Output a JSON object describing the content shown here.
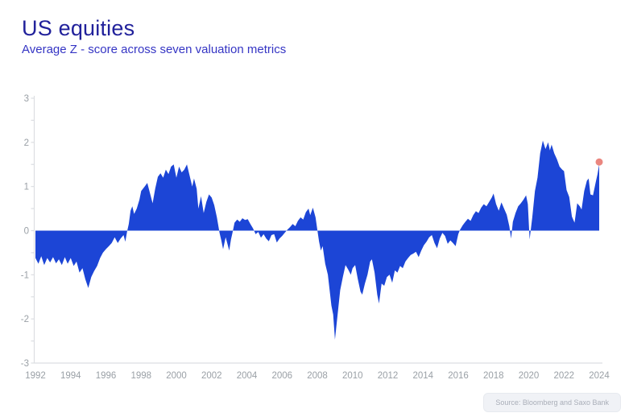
{
  "header": {
    "title": "US equities",
    "subtitle": "Average Z - score across seven valuation metrics"
  },
  "source": {
    "label": "Source: Bloomberg and Saxo Bank"
  },
  "colors": {
    "fill": "#1c45d6",
    "marker": "#ea867f",
    "axis_line": "#dcdee2",
    "tick_label": "#9aa0a6",
    "title": "#21219b",
    "subtitle": "#3535c4"
  },
  "chart_data": {
    "type": "area",
    "title": "US equities",
    "subtitle": "Average Z - score across seven valuation metrics",
    "xlabel": "",
    "ylabel": "",
    "xlim": [
      1992,
      2024
    ],
    "ylim": [
      -3,
      3
    ],
    "x_ticks": [
      1992,
      1994,
      1996,
      1998,
      2000,
      2002,
      2004,
      2006,
      2008,
      2010,
      2012,
      2014,
      2016,
      2018,
      2020,
      2022,
      2024
    ],
    "y_ticks": [
      3,
      2,
      1,
      0,
      -1,
      -2,
      -3
    ],
    "minor_y_tick_step": 0.5,
    "grid": false,
    "legend": null,
    "end_marker": {
      "x": 2024.0,
      "y": 1.5
    },
    "series_name": "Average Z-score",
    "points": [
      [
        1992.0,
        -0.62
      ],
      [
        1992.17,
        -0.75
      ],
      [
        1992.33,
        -0.58
      ],
      [
        1992.5,
        -0.78
      ],
      [
        1992.67,
        -0.62
      ],
      [
        1992.83,
        -0.72
      ],
      [
        1993.0,
        -0.6
      ],
      [
        1993.17,
        -0.74
      ],
      [
        1993.33,
        -0.65
      ],
      [
        1993.5,
        -0.78
      ],
      [
        1993.67,
        -0.6
      ],
      [
        1993.83,
        -0.75
      ],
      [
        1994.0,
        -0.62
      ],
      [
        1994.17,
        -0.8
      ],
      [
        1994.33,
        -0.7
      ],
      [
        1994.5,
        -0.95
      ],
      [
        1994.67,
        -0.85
      ],
      [
        1994.83,
        -1.1
      ],
      [
        1995.0,
        -1.3
      ],
      [
        1995.17,
        -1.05
      ],
      [
        1995.33,
        -0.92
      ],
      [
        1995.5,
        -0.8
      ],
      [
        1995.67,
        -0.62
      ],
      [
        1995.83,
        -0.5
      ],
      [
        1996.0,
        -0.42
      ],
      [
        1996.17,
        -0.35
      ],
      [
        1996.33,
        -0.28
      ],
      [
        1996.5,
        -0.15
      ],
      [
        1996.67,
        -0.28
      ],
      [
        1996.83,
        -0.18
      ],
      [
        1997.0,
        -0.1
      ],
      [
        1997.1,
        -0.25
      ],
      [
        1997.2,
        -0.02
      ],
      [
        1997.3,
        0.15
      ],
      [
        1997.4,
        0.45
      ],
      [
        1997.5,
        0.55
      ],
      [
        1997.6,
        0.38
      ],
      [
        1997.75,
        0.5
      ],
      [
        1997.9,
        0.7
      ],
      [
        1998.0,
        0.9
      ],
      [
        1998.2,
        1.0
      ],
      [
        1998.35,
        1.08
      ],
      [
        1998.5,
        0.85
      ],
      [
        1998.65,
        0.62
      ],
      [
        1998.8,
        0.95
      ],
      [
        1998.95,
        1.22
      ],
      [
        1999.1,
        1.3
      ],
      [
        1999.25,
        1.2
      ],
      [
        1999.4,
        1.38
      ],
      [
        1999.55,
        1.28
      ],
      [
        1999.7,
        1.45
      ],
      [
        1999.85,
        1.5
      ],
      [
        2000.0,
        1.2
      ],
      [
        2000.15,
        1.45
      ],
      [
        2000.3,
        1.32
      ],
      [
        2000.45,
        1.38
      ],
      [
        2000.6,
        1.5
      ],
      [
        2000.75,
        1.25
      ],
      [
        2000.9,
        1.0
      ],
      [
        2001.0,
        1.18
      ],
      [
        2001.15,
        0.95
      ],
      [
        2001.25,
        0.5
      ],
      [
        2001.4,
        0.78
      ],
      [
        2001.55,
        0.4
      ],
      [
        2001.7,
        0.65
      ],
      [
        2001.85,
        0.82
      ],
      [
        2002.0,
        0.75
      ],
      [
        2002.15,
        0.58
      ],
      [
        2002.3,
        0.3
      ],
      [
        2002.45,
        -0.05
      ],
      [
        2002.55,
        -0.22
      ],
      [
        2002.65,
        -0.42
      ],
      [
        2002.8,
        -0.15
      ],
      [
        2002.9,
        -0.3
      ],
      [
        2003.0,
        -0.45
      ],
      [
        2003.1,
        -0.2
      ],
      [
        2003.2,
        -0.02
      ],
      [
        2003.3,
        0.18
      ],
      [
        2003.45,
        0.25
      ],
      [
        2003.6,
        0.2
      ],
      [
        2003.75,
        0.28
      ],
      [
        2003.9,
        0.24
      ],
      [
        2004.05,
        0.26
      ],
      [
        2004.2,
        0.15
      ],
      [
        2004.35,
        0.05
      ],
      [
        2004.5,
        -0.08
      ],
      [
        2004.65,
        -0.03
      ],
      [
        2004.8,
        -0.16
      ],
      [
        2004.95,
        -0.08
      ],
      [
        2005.1,
        -0.18
      ],
      [
        2005.25,
        -0.24
      ],
      [
        2005.4,
        -0.1
      ],
      [
        2005.55,
        -0.08
      ],
      [
        2005.7,
        -0.27
      ],
      [
        2005.85,
        -0.18
      ],
      [
        2006.0,
        -0.12
      ],
      [
        2006.15,
        -0.05
      ],
      [
        2006.3,
        0.02
      ],
      [
        2006.45,
        0.08
      ],
      [
        2006.6,
        0.15
      ],
      [
        2006.75,
        0.1
      ],
      [
        2006.9,
        0.22
      ],
      [
        2007.05,
        0.3
      ],
      [
        2007.2,
        0.25
      ],
      [
        2007.35,
        0.42
      ],
      [
        2007.5,
        0.5
      ],
      [
        2007.6,
        0.35
      ],
      [
        2007.75,
        0.52
      ],
      [
        2007.9,
        0.3
      ],
      [
        2008.0,
        0.02
      ],
      [
        2008.1,
        -0.25
      ],
      [
        2008.2,
        -0.45
      ],
      [
        2008.3,
        -0.35
      ],
      [
        2008.45,
        -0.75
      ],
      [
        2008.6,
        -1.0
      ],
      [
        2008.7,
        -1.35
      ],
      [
        2008.8,
        -1.7
      ],
      [
        2008.9,
        -1.9
      ],
      [
        2009.0,
        -2.47
      ],
      [
        2009.15,
        -1.9
      ],
      [
        2009.3,
        -1.35
      ],
      [
        2009.45,
        -1.05
      ],
      [
        2009.6,
        -0.78
      ],
      [
        2009.75,
        -0.88
      ],
      [
        2009.9,
        -1.0
      ],
      [
        2010.0,
        -0.85
      ],
      [
        2010.15,
        -0.78
      ],
      [
        2010.3,
        -1.1
      ],
      [
        2010.45,
        -1.38
      ],
      [
        2010.55,
        -1.45
      ],
      [
        2010.7,
        -1.2
      ],
      [
        2010.85,
        -1.0
      ],
      [
        2011.0,
        -0.7
      ],
      [
        2011.1,
        -0.65
      ],
      [
        2011.25,
        -0.95
      ],
      [
        2011.4,
        -1.45
      ],
      [
        2011.5,
        -1.65
      ],
      [
        2011.65,
        -1.2
      ],
      [
        2011.8,
        -1.25
      ],
      [
        2011.95,
        -1.05
      ],
      [
        2012.1,
        -1.0
      ],
      [
        2012.25,
        -1.18
      ],
      [
        2012.4,
        -0.9
      ],
      [
        2012.55,
        -0.95
      ],
      [
        2012.7,
        -0.8
      ],
      [
        2012.85,
        -0.85
      ],
      [
        2013.0,
        -0.7
      ],
      [
        2013.15,
        -0.62
      ],
      [
        2013.3,
        -0.55
      ],
      [
        2013.45,
        -0.52
      ],
      [
        2013.6,
        -0.48
      ],
      [
        2013.75,
        -0.6
      ],
      [
        2013.9,
        -0.45
      ],
      [
        2014.05,
        -0.33
      ],
      [
        2014.2,
        -0.25
      ],
      [
        2014.35,
        -0.15
      ],
      [
        2014.5,
        -0.1
      ],
      [
        2014.65,
        -0.28
      ],
      [
        2014.8,
        -0.4
      ],
      [
        2014.95,
        -0.18
      ],
      [
        2015.1,
        -0.05
      ],
      [
        2015.25,
        -0.12
      ],
      [
        2015.4,
        -0.3
      ],
      [
        2015.55,
        -0.22
      ],
      [
        2015.7,
        -0.28
      ],
      [
        2015.85,
        -0.35
      ],
      [
        2016.0,
        -0.08
      ],
      [
        2016.1,
        0.02
      ],
      [
        2016.25,
        0.12
      ],
      [
        2016.4,
        0.2
      ],
      [
        2016.55,
        0.27
      ],
      [
        2016.7,
        0.22
      ],
      [
        2016.85,
        0.35
      ],
      [
        2017.0,
        0.44
      ],
      [
        2017.15,
        0.4
      ],
      [
        2017.3,
        0.52
      ],
      [
        2017.45,
        0.6
      ],
      [
        2017.6,
        0.55
      ],
      [
        2017.75,
        0.65
      ],
      [
        2017.9,
        0.75
      ],
      [
        2018.0,
        0.84
      ],
      [
        2018.15,
        0.6
      ],
      [
        2018.3,
        0.45
      ],
      [
        2018.45,
        0.64
      ],
      [
        2018.6,
        0.5
      ],
      [
        2018.75,
        0.36
      ],
      [
        2018.9,
        0.1
      ],
      [
        2019.0,
        -0.18
      ],
      [
        2019.1,
        0.2
      ],
      [
        2019.25,
        0.4
      ],
      [
        2019.4,
        0.55
      ],
      [
        2019.55,
        0.62
      ],
      [
        2019.7,
        0.7
      ],
      [
        2019.85,
        0.8
      ],
      [
        2019.95,
        0.6
      ],
      [
        2020.05,
        -0.2
      ],
      [
        2020.2,
        0.3
      ],
      [
        2020.35,
        0.9
      ],
      [
        2020.5,
        1.2
      ],
      [
        2020.65,
        1.75
      ],
      [
        2020.8,
        2.04
      ],
      [
        2020.95,
        1.85
      ],
      [
        2021.1,
        2.0
      ],
      [
        2021.2,
        1.82
      ],
      [
        2021.3,
        1.95
      ],
      [
        2021.45,
        1.75
      ],
      [
        2021.6,
        1.62
      ],
      [
        2021.75,
        1.45
      ],
      [
        2021.9,
        1.38
      ],
      [
        2022.0,
        1.35
      ],
      [
        2022.15,
        0.92
      ],
      [
        2022.3,
        0.76
      ],
      [
        2022.45,
        0.32
      ],
      [
        2022.6,
        0.18
      ],
      [
        2022.75,
        0.62
      ],
      [
        2022.9,
        0.55
      ],
      [
        2023.0,
        0.48
      ],
      [
        2023.15,
        0.9
      ],
      [
        2023.3,
        1.13
      ],
      [
        2023.4,
        1.18
      ],
      [
        2023.5,
        0.82
      ],
      [
        2023.65,
        0.8
      ],
      [
        2023.8,
        1.09
      ],
      [
        2023.9,
        1.27
      ],
      [
        2024.0,
        1.5
      ]
    ]
  }
}
